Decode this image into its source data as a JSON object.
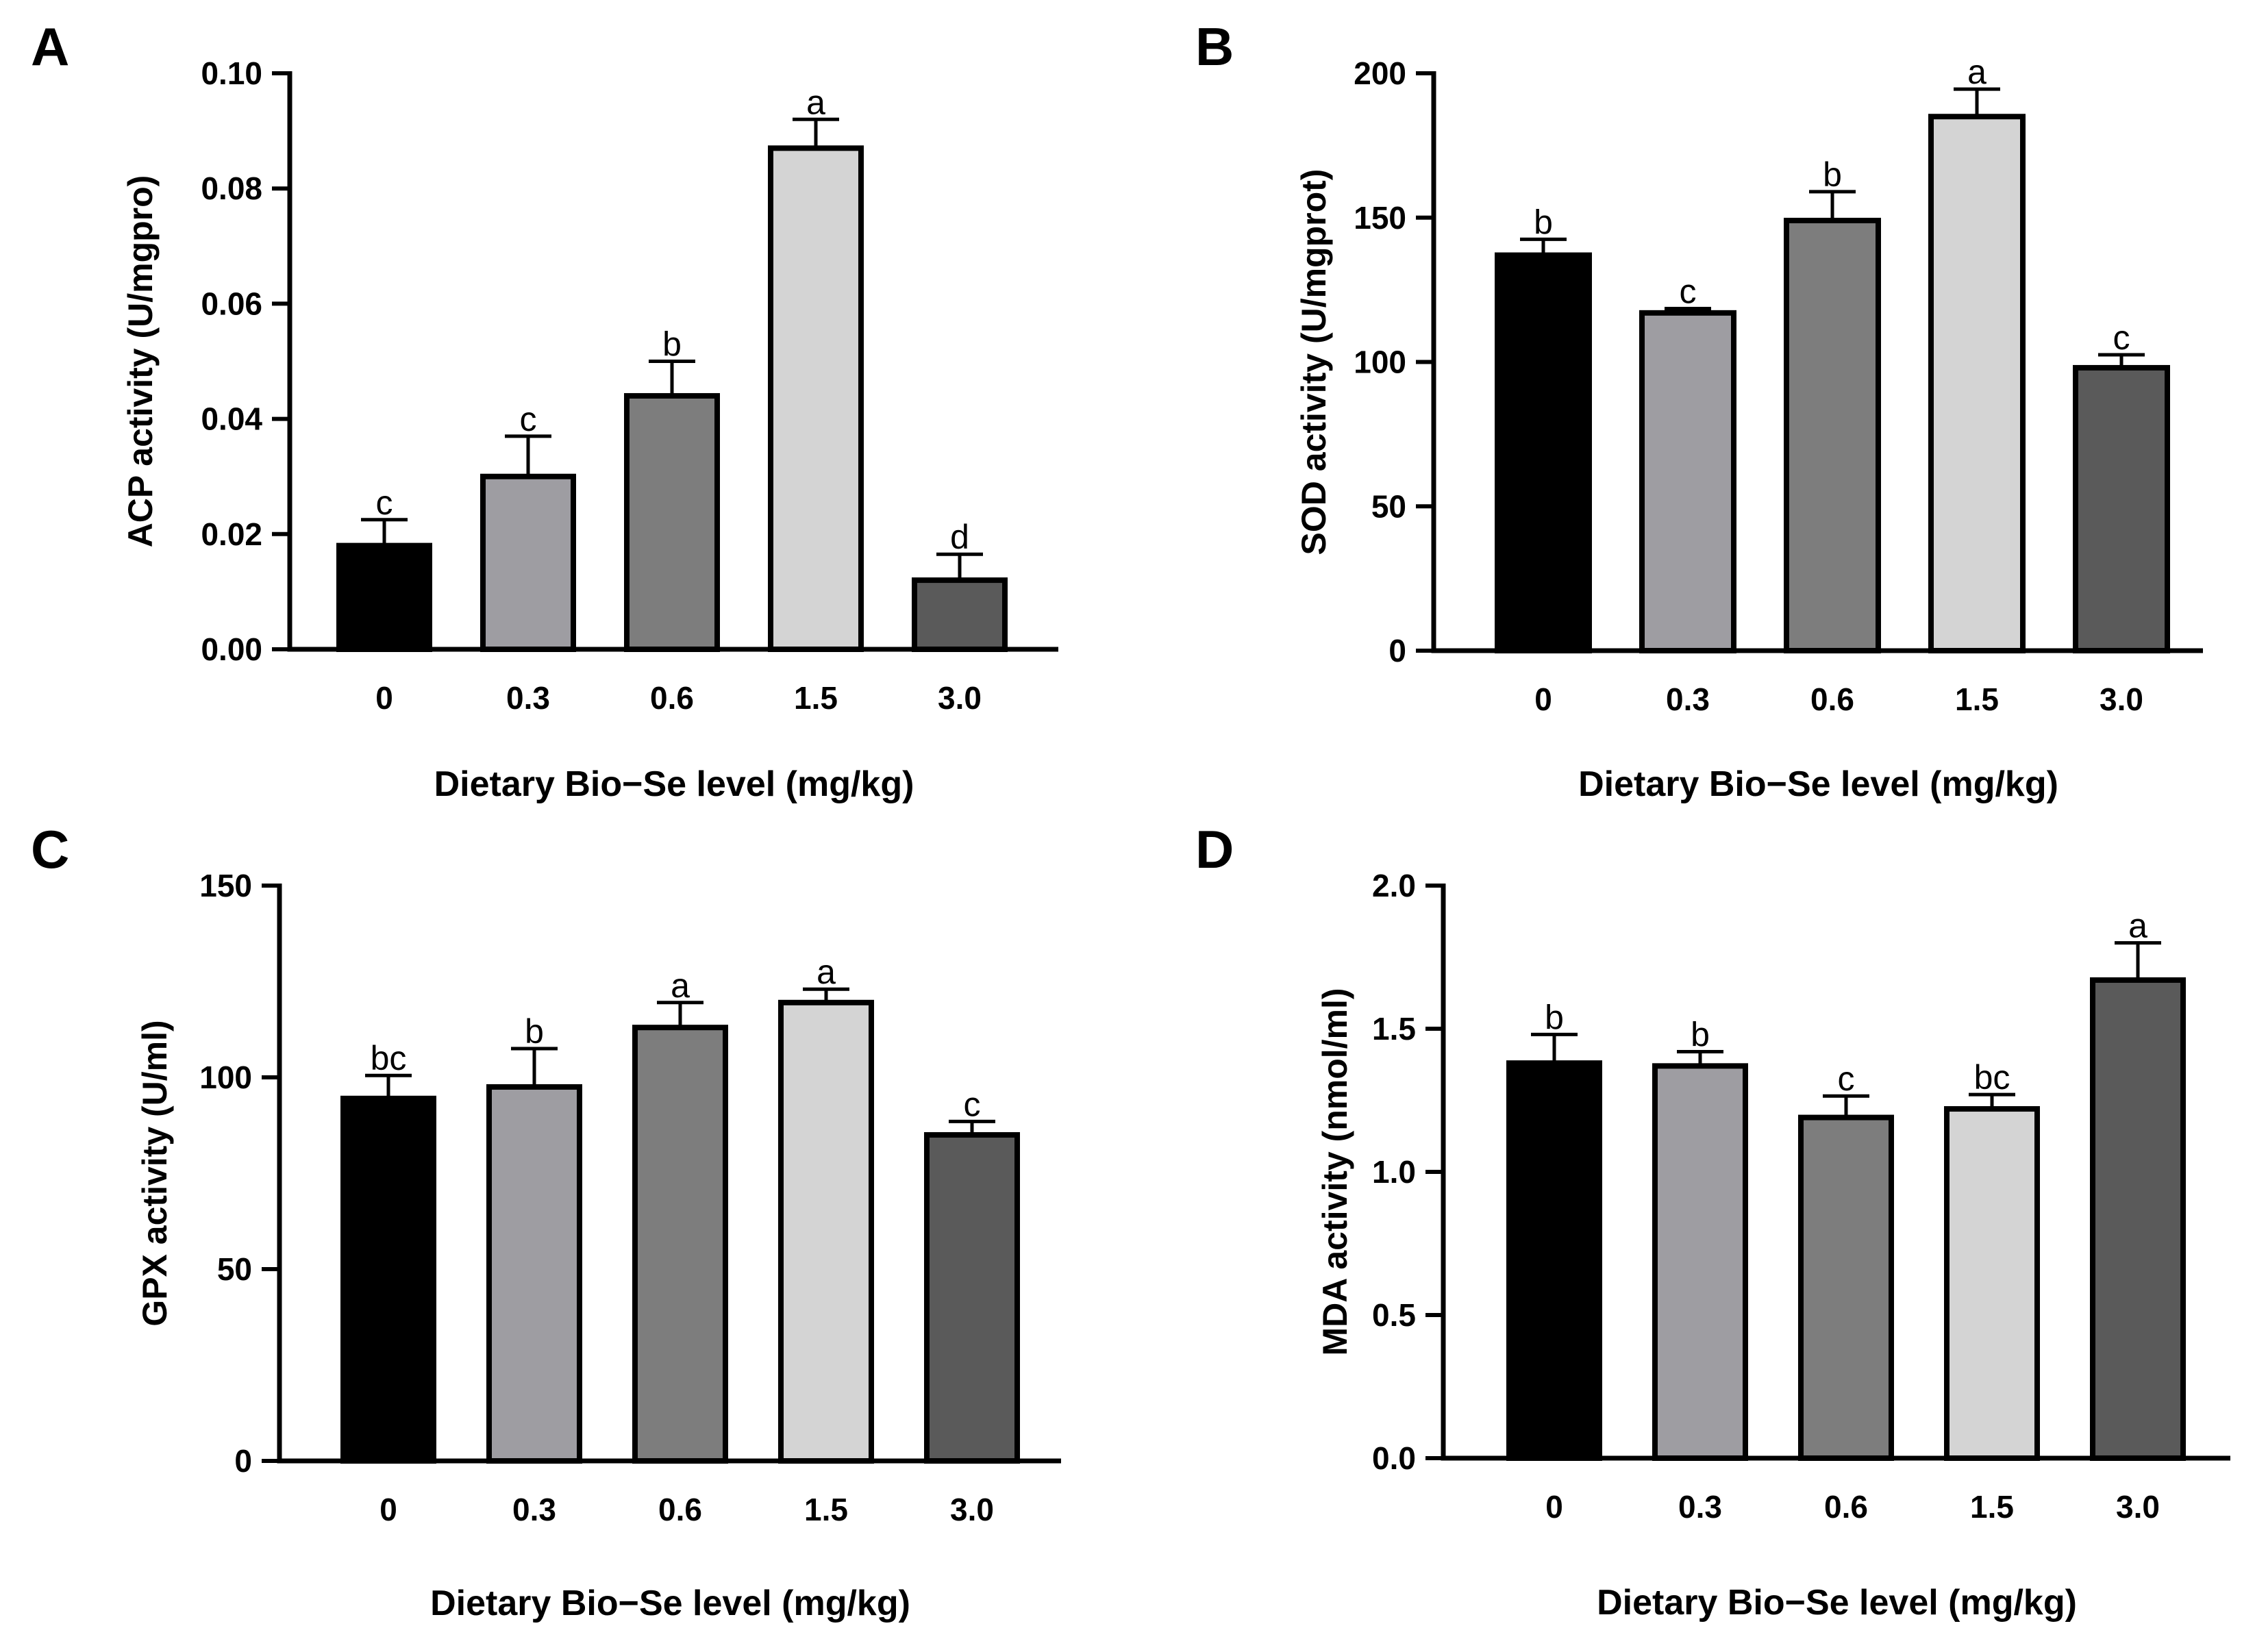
{
  "figure": {
    "x_axis_label": "Dietary Bio−Se level (mg/kg)",
    "categories": [
      "0",
      "0.3",
      "0.6",
      "1.5",
      "3.0"
    ],
    "bar_colors": [
      "#000000",
      "#9e9da2",
      "#7d7d7d",
      "#d4d4d4",
      "#5a5a5a"
    ]
  },
  "chart_data": [
    {
      "type": "bar",
      "panel": "A",
      "ylabel": "ACP activity (U/mgpro)",
      "xlabel": "Dietary Bio−Se level (mg/kg)",
      "categories": [
        "0",
        "0.3",
        "0.6",
        "1.5",
        "3.0"
      ],
      "values": [
        0.018,
        0.03,
        0.044,
        0.087,
        0.012
      ],
      "errors": [
        0.0045,
        0.007,
        0.006,
        0.005,
        0.0045
      ],
      "letters": [
        "c",
        "c",
        "b",
        "a",
        "d"
      ],
      "ylim": [
        0,
        0.1
      ],
      "yticks": [
        0,
        0.02,
        0.04,
        0.06,
        0.08,
        0.1
      ],
      "ytick_labels": [
        "0.00",
        "0.02",
        "0.04",
        "0.06",
        "0.08",
        "0.10"
      ]
    },
    {
      "type": "bar",
      "panel": "B",
      "ylabel": "SOD activity (U/mgprot)",
      "xlabel": "Dietary Bio−Se level (mg/kg)",
      "categories": [
        "0",
        "0.3",
        "0.6",
        "1.5",
        "3.0"
      ],
      "values": [
        137,
        117,
        149,
        185,
        98
      ],
      "errors": [
        5.5,
        1.5,
        10,
        9.5,
        4.5
      ],
      "letters": [
        "b",
        "c",
        "b",
        "a",
        "c"
      ],
      "ylim": [
        0,
        200
      ],
      "yticks": [
        0,
        50,
        100,
        150,
        200
      ],
      "ytick_labels": [
        "0",
        "50",
        "100",
        "150",
        "200"
      ]
    },
    {
      "type": "bar",
      "panel": "C",
      "ylabel": "GPX activity (U/ml)",
      "xlabel": "Dietary Bio−Se level (mg/kg)",
      "categories": [
        "0",
        "0.3",
        "0.6",
        "1.5",
        "3.0"
      ],
      "values": [
        94.5,
        97.5,
        113,
        119.5,
        85
      ],
      "errors": [
        6,
        10,
        6.5,
        3.5,
        3.5
      ],
      "letters": [
        "bc",
        "b",
        "a",
        "a",
        "c"
      ],
      "ylim": [
        0,
        150
      ],
      "yticks": [
        0,
        50,
        100,
        150
      ],
      "ytick_labels": [
        "0",
        "50",
        "100",
        "150"
      ]
    },
    {
      "type": "bar",
      "panel": "D",
      "ylabel": "MDA activity (nmol/ml)",
      "xlabel": "Dietary Bio−Se level (mg/kg)",
      "categories": [
        "0",
        "0.3",
        "0.6",
        "1.5",
        "3.0"
      ],
      "values": [
        1.38,
        1.37,
        1.19,
        1.22,
        1.67
      ],
      "errors": [
        0.1,
        0.05,
        0.075,
        0.05,
        0.13
      ],
      "letters": [
        "b",
        "b",
        "c",
        "bc",
        "a"
      ],
      "ylim": [
        0,
        2
      ],
      "yticks": [
        0,
        0.5,
        1,
        1.5,
        2
      ],
      "ytick_labels": [
        "0.0",
        "0.5",
        "1.0",
        "1.5",
        "2.0"
      ]
    }
  ]
}
